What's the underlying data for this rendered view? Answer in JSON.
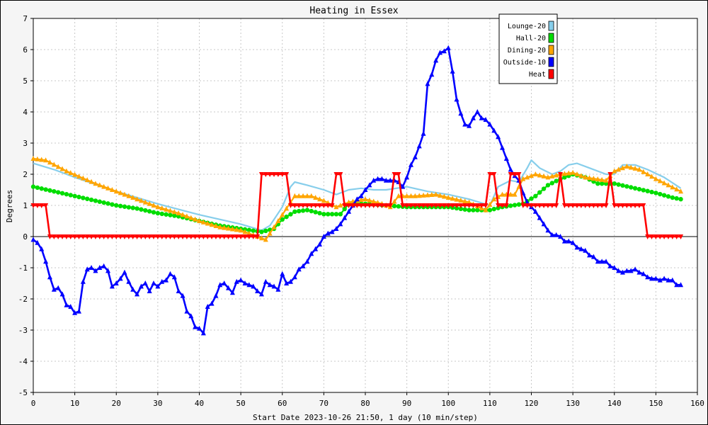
{
  "chart_data": {
    "type": "line",
    "title": "Heating in Essex",
    "xlabel": "Start Date 2023-10-26 21:50, 1 day (10 min/step)",
    "ylabel": "Degrees",
    "xlim": [
      0,
      160
    ],
    "ylim": [
      -5,
      7
    ],
    "x_ticks": [
      0,
      10,
      20,
      30,
      40,
      50,
      60,
      70,
      80,
      90,
      100,
      110,
      120,
      130,
      140,
      150,
      160
    ],
    "y_ticks": [
      -5,
      -4,
      -3,
      -2,
      -1,
      0,
      1,
      2,
      3,
      4,
      5,
      6,
      7
    ],
    "grid": true,
    "legend_position": "top-right",
    "series": [
      {
        "name": "Lounge-20",
        "color": "#87ceeb",
        "marker": "none",
        "points": [
          [
            0,
            2.35
          ],
          [
            5,
            2.15
          ],
          [
            10,
            1.9
          ],
          [
            20,
            1.45
          ],
          [
            30,
            1.05
          ],
          [
            40,
            0.7
          ],
          [
            50,
            0.4
          ],
          [
            55,
            0.2
          ],
          [
            57,
            0.35
          ],
          [
            60,
            0.95
          ],
          [
            62,
            1.6
          ],
          [
            63,
            1.75
          ],
          [
            66,
            1.65
          ],
          [
            70,
            1.5
          ],
          [
            73,
            1.35
          ],
          [
            76,
            1.5
          ],
          [
            79,
            1.55
          ],
          [
            82,
            1.5
          ],
          [
            85,
            1.5
          ],
          [
            90,
            1.6
          ],
          [
            95,
            1.45
          ],
          [
            100,
            1.35
          ],
          [
            105,
            1.2
          ],
          [
            110,
            1.0
          ],
          [
            112,
            1.6
          ],
          [
            115,
            1.8
          ],
          [
            117,
            1.75
          ],
          [
            119,
            2.2
          ],
          [
            120,
            2.45
          ],
          [
            122,
            2.2
          ],
          [
            125,
            2.0
          ],
          [
            127,
            2.1
          ],
          [
            129,
            2.3
          ],
          [
            131,
            2.35
          ],
          [
            134,
            2.2
          ],
          [
            138,
            2.0
          ],
          [
            140,
            2.0
          ],
          [
            142,
            2.3
          ],
          [
            145,
            2.3
          ],
          [
            148,
            2.15
          ],
          [
            152,
            1.9
          ],
          [
            156,
            1.55
          ]
        ]
      },
      {
        "name": "Hall-20",
        "color": "#00dd00",
        "marker": "circle",
        "points": [
          [
            0,
            1.6
          ],
          [
            5,
            1.45
          ],
          [
            10,
            1.3
          ],
          [
            15,
            1.15
          ],
          [
            20,
            1.0
          ],
          [
            25,
            0.9
          ],
          [
            30,
            0.75
          ],
          [
            35,
            0.65
          ],
          [
            40,
            0.5
          ],
          [
            45,
            0.35
          ],
          [
            50,
            0.25
          ],
          [
            55,
            0.15
          ],
          [
            58,
            0.25
          ],
          [
            60,
            0.55
          ],
          [
            63,
            0.8
          ],
          [
            66,
            0.85
          ],
          [
            70,
            0.72
          ],
          [
            74,
            0.72
          ],
          [
            76,
            1.05
          ],
          [
            80,
            1.05
          ],
          [
            85,
            1.0
          ],
          [
            90,
            0.95
          ],
          [
            95,
            0.95
          ],
          [
            100,
            0.95
          ],
          [
            105,
            0.85
          ],
          [
            110,
            0.85
          ],
          [
            113,
            0.95
          ],
          [
            118,
            1.05
          ],
          [
            121,
            1.3
          ],
          [
            124,
            1.65
          ],
          [
            127,
            1.85
          ],
          [
            130,
            2.0
          ],
          [
            133,
            1.9
          ],
          [
            136,
            1.7
          ],
          [
            140,
            1.7
          ],
          [
            145,
            1.55
          ],
          [
            150,
            1.4
          ],
          [
            154,
            1.25
          ],
          [
            156,
            1.2
          ]
        ]
      },
      {
        "name": "Dining-20",
        "color": "#ffa500",
        "marker": "triangle",
        "points": [
          [
            0,
            2.5
          ],
          [
            3,
            2.45
          ],
          [
            8,
            2.1
          ],
          [
            15,
            1.7
          ],
          [
            20,
            1.45
          ],
          [
            25,
            1.2
          ],
          [
            30,
            0.95
          ],
          [
            35,
            0.75
          ],
          [
            40,
            0.5
          ],
          [
            45,
            0.3
          ],
          [
            50,
            0.2
          ],
          [
            54,
            0.0
          ],
          [
            56,
            -0.1
          ],
          [
            58,
            0.3
          ],
          [
            61,
            0.9
          ],
          [
            63,
            1.3
          ],
          [
            67,
            1.3
          ],
          [
            70,
            1.15
          ],
          [
            73,
            0.95
          ],
          [
            76,
            1.1
          ],
          [
            80,
            1.2
          ],
          [
            84,
            1.05
          ],
          [
            86,
            0.95
          ],
          [
            88,
            1.3
          ],
          [
            92,
            1.3
          ],
          [
            97,
            1.35
          ],
          [
            100,
            1.25
          ],
          [
            105,
            1.1
          ],
          [
            109,
            0.85
          ],
          [
            111,
            1.2
          ],
          [
            113,
            1.35
          ],
          [
            116,
            1.35
          ],
          [
            118,
            1.85
          ],
          [
            121,
            2.0
          ],
          [
            124,
            1.9
          ],
          [
            127,
            2.0
          ],
          [
            130,
            2.05
          ],
          [
            133,
            1.9
          ],
          [
            138,
            1.8
          ],
          [
            140,
            2.1
          ],
          [
            143,
            2.25
          ],
          [
            146,
            2.15
          ],
          [
            150,
            1.85
          ],
          [
            153,
            1.65
          ],
          [
            156,
            1.45
          ]
        ]
      },
      {
        "name": "Outside-10",
        "color": "#0000ff",
        "marker": "triangle",
        "points": [
          [
            0,
            -0.1
          ],
          [
            1,
            -0.2
          ],
          [
            2,
            -0.4
          ],
          [
            3,
            -0.8
          ],
          [
            4,
            -1.3
          ],
          [
            5,
            -1.7
          ],
          [
            6,
            -1.65
          ],
          [
            7,
            -1.85
          ],
          [
            8,
            -2.2
          ],
          [
            9,
            -2.25
          ],
          [
            10,
            -2.45
          ],
          [
            11,
            -2.4
          ],
          [
            12,
            -1.45
          ],
          [
            13,
            -1.05
          ],
          [
            14,
            -1.0
          ],
          [
            15,
            -1.1
          ],
          [
            16,
            -1.0
          ],
          [
            17,
            -0.95
          ],
          [
            18,
            -1.1
          ],
          [
            19,
            -1.6
          ],
          [
            20,
            -1.5
          ],
          [
            21,
            -1.35
          ],
          [
            22,
            -1.15
          ],
          [
            23,
            -1.45
          ],
          [
            24,
            -1.7
          ],
          [
            25,
            -1.85
          ],
          [
            26,
            -1.6
          ],
          [
            27,
            -1.5
          ],
          [
            28,
            -1.75
          ],
          [
            29,
            -1.5
          ],
          [
            30,
            -1.6
          ],
          [
            31,
            -1.45
          ],
          [
            32,
            -1.4
          ],
          [
            33,
            -1.2
          ],
          [
            34,
            -1.3
          ],
          [
            35,
            -1.75
          ],
          [
            36,
            -1.9
          ],
          [
            37,
            -2.4
          ],
          [
            38,
            -2.55
          ],
          [
            39,
            -2.9
          ],
          [
            40,
            -2.95
          ],
          [
            41,
            -3.1
          ],
          [
            42,
            -2.25
          ],
          [
            43,
            -2.15
          ],
          [
            44,
            -1.9
          ],
          [
            45,
            -1.55
          ],
          [
            46,
            -1.5
          ],
          [
            47,
            -1.65
          ],
          [
            48,
            -1.8
          ],
          [
            49,
            -1.45
          ],
          [
            50,
            -1.4
          ],
          [
            51,
            -1.5
          ],
          [
            52,
            -1.55
          ],
          [
            53,
            -1.6
          ],
          [
            54,
            -1.75
          ],
          [
            55,
            -1.85
          ],
          [
            56,
            -1.45
          ],
          [
            57,
            -1.55
          ],
          [
            58,
            -1.6
          ],
          [
            59,
            -1.7
          ],
          [
            60,
            -1.2
          ],
          [
            61,
            -1.5
          ],
          [
            62,
            -1.45
          ],
          [
            63,
            -1.3
          ],
          [
            64,
            -1.05
          ],
          [
            65,
            -0.95
          ],
          [
            66,
            -0.8
          ],
          [
            67,
            -0.55
          ],
          [
            68,
            -0.4
          ],
          [
            69,
            -0.25
          ],
          [
            70,
            0.0
          ],
          [
            71,
            0.1
          ],
          [
            72,
            0.15
          ],
          [
            73,
            0.25
          ],
          [
            74,
            0.4
          ],
          [
            75,
            0.6
          ],
          [
            76,
            0.8
          ],
          [
            77,
            1.0
          ],
          [
            78,
            1.2
          ],
          [
            79,
            1.3
          ],
          [
            80,
            1.5
          ],
          [
            81,
            1.65
          ],
          [
            82,
            1.8
          ],
          [
            83,
            1.85
          ],
          [
            84,
            1.85
          ],
          [
            85,
            1.8
          ],
          [
            86,
            1.8
          ],
          [
            87,
            1.8
          ],
          [
            88,
            1.75
          ],
          [
            89,
            1.6
          ],
          [
            90,
            1.9
          ],
          [
            91,
            2.3
          ],
          [
            92,
            2.55
          ],
          [
            93,
            2.9
          ],
          [
            94,
            3.3
          ],
          [
            95,
            4.9
          ],
          [
            96,
            5.2
          ],
          [
            97,
            5.65
          ],
          [
            98,
            5.9
          ],
          [
            99,
            5.95
          ],
          [
            100,
            6.05
          ],
          [
            101,
            5.3
          ],
          [
            102,
            4.4
          ],
          [
            103,
            3.95
          ],
          [
            104,
            3.6
          ],
          [
            105,
            3.55
          ],
          [
            106,
            3.8
          ],
          [
            107,
            4.0
          ],
          [
            108,
            3.8
          ],
          [
            109,
            3.75
          ],
          [
            110,
            3.6
          ],
          [
            111,
            3.4
          ],
          [
            112,
            3.2
          ],
          [
            113,
            2.85
          ],
          [
            114,
            2.5
          ],
          [
            115,
            2.15
          ],
          [
            116,
            1.95
          ],
          [
            117,
            1.8
          ],
          [
            118,
            1.4
          ],
          [
            119,
            1.1
          ],
          [
            120,
            0.95
          ],
          [
            121,
            0.8
          ],
          [
            122,
            0.6
          ],
          [
            123,
            0.4
          ],
          [
            124,
            0.2
          ],
          [
            125,
            0.05
          ],
          [
            126,
            0.05
          ],
          [
            127,
            0.0
          ],
          [
            128,
            -0.15
          ],
          [
            129,
            -0.15
          ],
          [
            130,
            -0.2
          ],
          [
            131,
            -0.35
          ],
          [
            132,
            -0.4
          ],
          [
            133,
            -0.45
          ],
          [
            134,
            -0.6
          ],
          [
            135,
            -0.65
          ],
          [
            136,
            -0.8
          ],
          [
            137,
            -0.8
          ],
          [
            138,
            -0.8
          ],
          [
            139,
            -0.95
          ],
          [
            140,
            -1.0
          ],
          [
            141,
            -1.1
          ],
          [
            142,
            -1.15
          ],
          [
            143,
            -1.1
          ],
          [
            144,
            -1.1
          ],
          [
            145,
            -1.05
          ],
          [
            146,
            -1.15
          ],
          [
            147,
            -1.2
          ],
          [
            148,
            -1.3
          ],
          [
            149,
            -1.35
          ],
          [
            150,
            -1.35
          ],
          [
            151,
            -1.4
          ],
          [
            152,
            -1.35
          ],
          [
            153,
            -1.4
          ],
          [
            154,
            -1.4
          ],
          [
            155,
            -1.55
          ],
          [
            156,
            -1.55
          ]
        ]
      },
      {
        "name": "Heat",
        "color": "#ff0000",
        "marker": "triangle-down",
        "points": [
          [
            0,
            1
          ],
          [
            3,
            1
          ],
          [
            4,
            0
          ],
          [
            54,
            0
          ],
          [
            55,
            2
          ],
          [
            61,
            2
          ],
          [
            62,
            1
          ],
          [
            72,
            1
          ],
          [
            73,
            2
          ],
          [
            74,
            2
          ],
          [
            75,
            1
          ],
          [
            86,
            1
          ],
          [
            87,
            2
          ],
          [
            88,
            2
          ],
          [
            89,
            1
          ],
          [
            109,
            1
          ],
          [
            110,
            2
          ],
          [
            111,
            2
          ],
          [
            112,
            1
          ],
          [
            114,
            1
          ],
          [
            115,
            2
          ],
          [
            117,
            2
          ],
          [
            118,
            1
          ],
          [
            126,
            1
          ],
          [
            127,
            2
          ],
          [
            128,
            1
          ],
          [
            138,
            1
          ],
          [
            139,
            2
          ],
          [
            140,
            1
          ],
          [
            147,
            1
          ],
          [
            148,
            0
          ],
          [
            156,
            0
          ]
        ]
      }
    ]
  }
}
